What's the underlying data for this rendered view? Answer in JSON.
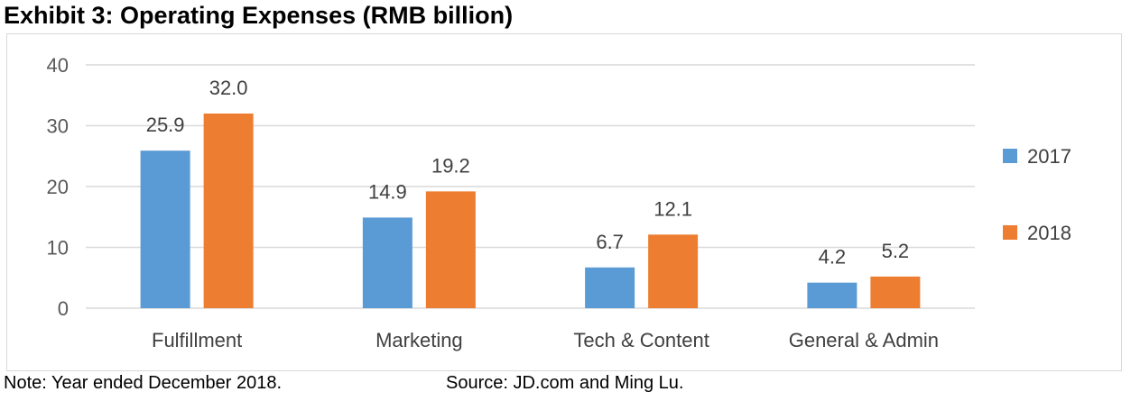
{
  "title": "Exhibit 3: Operating Expenses (RMB billion)",
  "note": "Note: Year ended December 2018.",
  "source": "Source: JD.com and Ming Lu.",
  "chart_data": {
    "type": "bar",
    "categories": [
      "Fulfillment",
      "Marketing",
      "Tech & Content",
      "General & Admin"
    ],
    "series": [
      {
        "name": "2017",
        "color": "#5b9bd5",
        "values": [
          25.9,
          14.9,
          6.7,
          4.2
        ],
        "labels": [
          "25.9",
          "14.9",
          "6.7",
          "4.2"
        ]
      },
      {
        "name": "2018",
        "color": "#ed7d31",
        "values": [
          32.0,
          19.2,
          12.1,
          5.2
        ],
        "labels": [
          "32.0",
          "19.2",
          "12.1",
          "5.2"
        ]
      }
    ],
    "yticks": [
      "0",
      "10",
      "20",
      "30",
      "40"
    ],
    "ylim": [
      0,
      40
    ],
    "xlabel": "",
    "ylabel": "",
    "grid": true,
    "legend": "right"
  }
}
